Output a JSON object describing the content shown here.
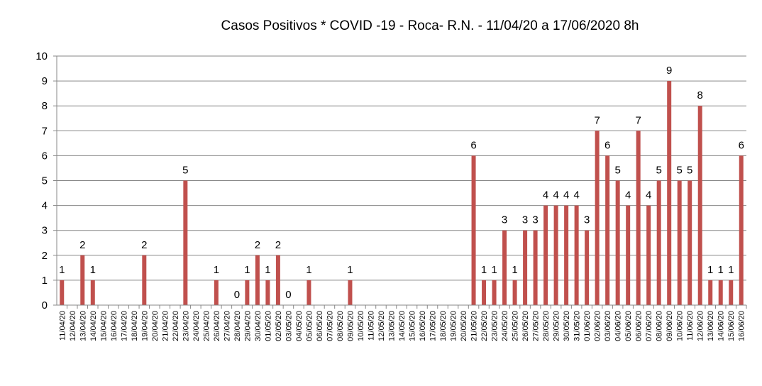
{
  "chart_data": {
    "type": "bar",
    "title": "Casos Positivos * COVID -19 - Roca- R.N. - 11/04/20  a 17/06/2020 8h",
    "xlabel": "",
    "ylabel": "",
    "ylim": [
      0,
      10
    ],
    "yticks": [
      "0",
      "1",
      "2",
      "3",
      "4",
      "5",
      "6",
      "7",
      "8",
      "9",
      "10"
    ],
    "grid": true,
    "bar_color": "#c0504d",
    "categories": [
      "11/04/20",
      "12/04/20",
      "13/04/20",
      "14/04/20",
      "15/04/20",
      "16/04/20",
      "17/04/20",
      "18/04/20",
      "19/04/20",
      "20/04/20",
      "21/04/20",
      "22/04/20",
      "23/04/20",
      "24/04/20",
      "25/04/20",
      "26/04/20",
      "27/04/20",
      "28/04/20",
      "29/04/20",
      "30/04/20",
      "01/05/20",
      "02/05/20",
      "03/05/20",
      "04/05/20",
      "05/05/20",
      "06/05/20",
      "07/05/20",
      "08/05/20",
      "09/05/20",
      "10/05/20",
      "11/05/20",
      "12/05/20",
      "13/05/20",
      "14/05/20",
      "15/05/20",
      "16/05/20",
      "17/05/20",
      "18/05/20",
      "19/05/20",
      "20/05/20",
      "21/05/20",
      "22/05/20",
      "23/05/20",
      "24/05/20",
      "25/05/20",
      "26/05/20",
      "27/05/20",
      "28/05/20",
      "29/05/20",
      "30/05/20",
      "31/05/20",
      "01/06/20",
      "02/06/20",
      "03/06/20",
      "04/06/20",
      "05/06/20",
      "06/06/20",
      "07/06/20",
      "08/06/20",
      "09/06/20",
      "10/06/20",
      "11/06/20",
      "12/06/20",
      "13/06/20",
      "14/06/20",
      "15/06/20",
      "16/06/20"
    ],
    "values": [
      1,
      null,
      2,
      1,
      null,
      null,
      null,
      null,
      2,
      null,
      null,
      null,
      5,
      null,
      null,
      1,
      null,
      0,
      1,
      2,
      1,
      2,
      0,
      null,
      1,
      null,
      null,
      null,
      1,
      null,
      null,
      null,
      null,
      null,
      null,
      null,
      null,
      null,
      null,
      null,
      6,
      1,
      1,
      3,
      1,
      3,
      3,
      4,
      4,
      4,
      4,
      3,
      7,
      6,
      5,
      4,
      7,
      4,
      5,
      9,
      5,
      5,
      8,
      1,
      1,
      1,
      6
    ]
  }
}
